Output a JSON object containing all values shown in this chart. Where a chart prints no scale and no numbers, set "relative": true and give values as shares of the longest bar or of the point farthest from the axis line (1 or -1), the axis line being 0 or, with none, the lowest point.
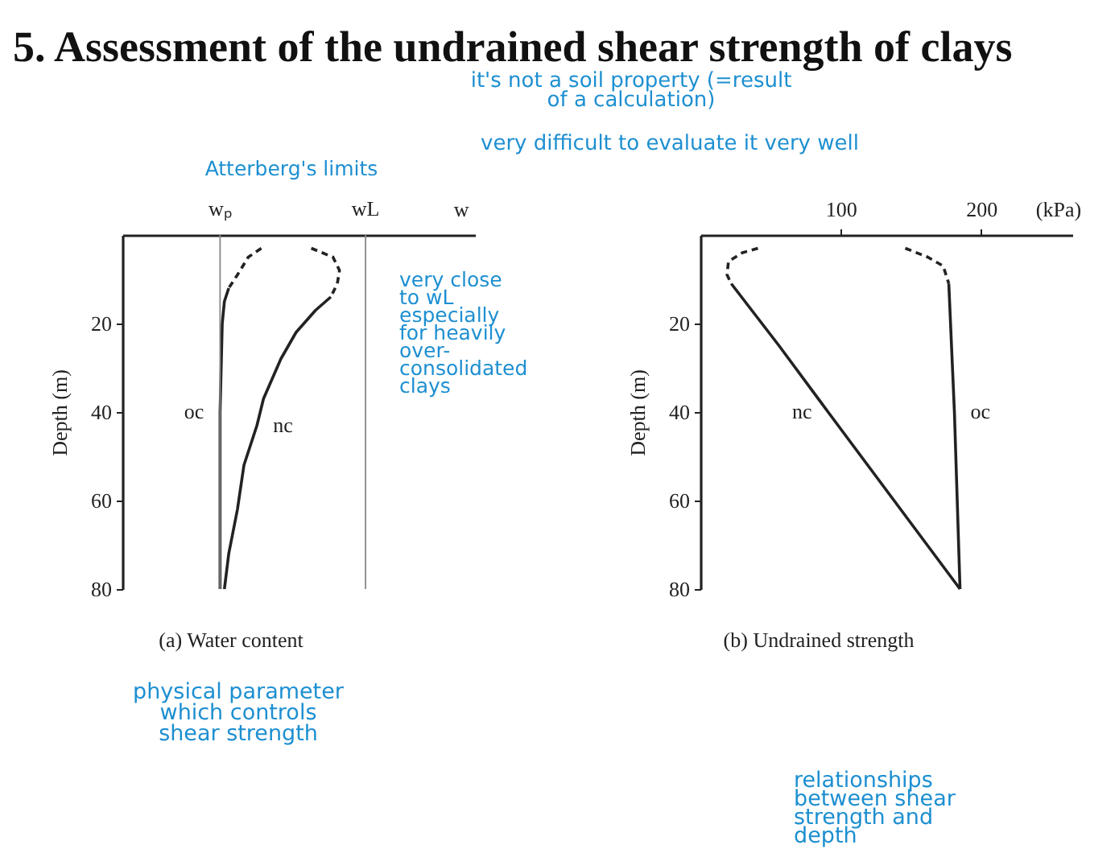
{
  "chart_data": [
    {
      "type": "other",
      "title": "5. Assessment of the undrained shear strength of clays",
      "annotations": [
        "it's not a soil property (=result of a calculation)",
        "very difficult to evaluate it very well"
      ]
    },
    {
      "type": "line",
      "orientation": "horizontal",
      "relative": true,
      "title": "(a) Water content",
      "xlabel": "w",
      "ylabel": "Depth (m)",
      "ylim": [
        80,
        0
      ],
      "yticks": [
        20,
        40,
        60,
        80
      ],
      "ref_lines": [
        {
          "axis": "x",
          "value": 0.45,
          "label": "wₚ",
          "color": "#888888"
        },
        {
          "axis": "x",
          "value": 1.12,
          "label": "wL",
          "color": "#888888"
        }
      ],
      "annotations": [
        "Atterberg's limits",
        "very close to wL especially for heavily over-consolidated clays",
        "physical parameter which controls shear strength"
      ],
      "series": [
        {
          "color": "#222222",
          "line_style": "dashed",
          "x": [
            3,
            5,
            9,
            12
          ],
          "values": [
            0.64,
            0.58,
            0.53,
            0.49
          ]
        },
        {
          "name": "oc",
          "color": "#222222",
          "line_style": "solid",
          "x": [
            12,
            15,
            20,
            40,
            60,
            80
          ],
          "values": [
            0.49,
            0.47,
            0.46,
            0.45,
            0.45,
            0.45
          ]
        },
        {
          "color": "#222222",
          "line_style": "dashed",
          "x": [
            3,
            5,
            8,
            11,
            14
          ],
          "values": [
            0.87,
            0.97,
            1,
            0.99,
            0.96
          ]
        },
        {
          "name": "nc",
          "color": "#222222",
          "line_style": "solid",
          "x": [
            14,
            17,
            22,
            28,
            37,
            43,
            52,
            62,
            72,
            80
          ],
          "values": [
            0.96,
            0.89,
            0.8,
            0.73,
            0.65,
            0.62,
            0.56,
            0.53,
            0.49,
            0.47
          ]
        }
      ]
    },
    {
      "type": "line",
      "orientation": "horizontal",
      "title": "(b) Undrained strength",
      "xlabel": "(kPa)",
      "ylabel": "Depth (m)",
      "xlim": [
        0,
        265
      ],
      "xticks": [
        100,
        200
      ],
      "ylim": [
        80,
        0
      ],
      "yticks": [
        20,
        40,
        60,
        80
      ],
      "annotations": [
        "relationships between shear strength and depth"
      ],
      "series": [
        {
          "color": "#222222",
          "line_style": "dashed",
          "x": [
            3,
            4,
            6,
            9,
            11
          ],
          "values": [
            41,
            30,
            20,
            19,
            22
          ]
        },
        {
          "name": "nc",
          "color": "#222222",
          "line_style": "solid",
          "x": [
            11,
            25,
            40,
            60,
            80
          ],
          "values": [
            22,
            56,
            91,
            138,
            185
          ]
        },
        {
          "color": "#222222",
          "line_style": "dashed",
          "x": [
            3,
            5,
            7,
            11
          ],
          "values": [
            146,
            162,
            173,
            177
          ]
        },
        {
          "name": "oc",
          "color": "#222222",
          "line_style": "solid",
          "x": [
            11,
            40,
            80
          ],
          "values": [
            177,
            181,
            185
          ]
        }
      ]
    }
  ]
}
